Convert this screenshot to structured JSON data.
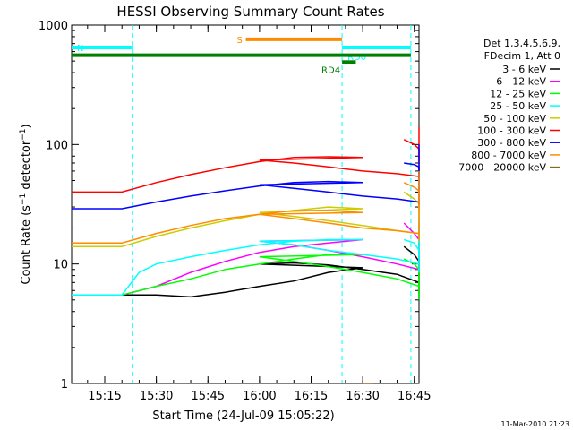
{
  "chart_data": {
    "type": "line",
    "title": "HESSI Observing Summary Count Rates",
    "xlabel": "Start Time (24-Jul-09 15:05:22)",
    "ylabel": "Count Rate (s⁻¹ detector⁻¹)",
    "ylabel_main": "Count Rate (s",
    "ylabel_sup1": "−1",
    "ylabel_mid": " detector",
    "ylabel_sup2": "−1",
    "ylabel_end": ")",
    "yscale": "log",
    "ylim": [
      1,
      1000
    ],
    "xlim_minutes": [
      0,
      101
    ],
    "x_ticks": [
      "15:15",
      "15:30",
      "15:45",
      "16:00",
      "16:15",
      "16:30",
      "16:45"
    ],
    "y_ticks": [
      "1",
      "10",
      "100",
      "1000"
    ],
    "legend_header": [
      "Det 1,3,4,5,6,9,",
      "FDecim 1, Att 0"
    ],
    "legend_position": "right",
    "footer_date": "11-Mar-2010 21:23",
    "segments": [
      {
        "label": "N",
        "color": "#00ffff",
        "x_start": "15:05",
        "x_end": "15:23",
        "level": 650
      },
      {
        "label": "S",
        "color": "#ff8c00",
        "x_start": "15:56",
        "x_end": "16:24",
        "level": 760
      },
      {
        "label": "RD0",
        "color": "#00ffff",
        "x_start": "16:24",
        "x_end": "16:44",
        "level": 650
      },
      {
        "label": "RD4",
        "color": "#008000",
        "x_start": "16:24",
        "x_end": "16:28",
        "level": 490
      },
      {
        "label": "",
        "color": "#008000",
        "x_start": "15:05",
        "x_end": "16:44",
        "level": 560
      }
    ],
    "night_boundaries": [
      "15:23",
      "16:24",
      "16:44"
    ],
    "series": [
      {
        "name": "3 - 6 keV",
        "color": "#000000",
        "segment1": [
          [
            15.2,
            5.5
          ],
          [
            15.3,
            5.5
          ],
          [
            15.4,
            5.3
          ],
          [
            15.5,
            5.8
          ],
          [
            15.6,
            6.5
          ],
          [
            15.7,
            7.2
          ],
          [
            15.8,
            8.5
          ],
          [
            15.9,
            9.3
          ],
          [
            16.0,
            10
          ],
          [
            16.1,
            10.2
          ],
          [
            16.2,
            9.8
          ],
          [
            16.3,
            9.0
          ],
          [
            16.4,
            8.2
          ],
          [
            16.5,
            7.0
          ],
          [
            16.6,
            6.2
          ],
          [
            16.7,
            5.5
          ],
          [
            16.8,
            5.0
          ],
          [
            16.9,
            5.5
          ],
          [
            16.95,
            12
          ]
        ],
        "segment2": [
          [
            16.42,
            14
          ],
          [
            16.45,
            12
          ],
          [
            16.5,
            10.5
          ],
          [
            16.55,
            9.5
          ],
          [
            16.6,
            9.0
          ],
          [
            16.65,
            8.5
          ],
          [
            16.7,
            8.2
          ],
          [
            16.73,
            7.5
          ]
        ]
      },
      {
        "name": "6 - 12 keV",
        "color": "#ff00ff",
        "segment1": [
          [
            15.0,
            5.5
          ],
          [
            15.2,
            5.5
          ],
          [
            15.3,
            6.5
          ],
          [
            15.4,
            8.5
          ],
          [
            15.5,
            10.5
          ],
          [
            15.6,
            12.5
          ],
          [
            15.7,
            14
          ],
          [
            15.8,
            15
          ],
          [
            15.9,
            16
          ],
          [
            16.0,
            15.5
          ],
          [
            16.1,
            14.5
          ],
          [
            16.2,
            13
          ],
          [
            16.3,
            11.5
          ],
          [
            16.4,
            10
          ],
          [
            16.5,
            9
          ],
          [
            16.6,
            8.5
          ],
          [
            16.7,
            8
          ],
          [
            16.8,
            7.5
          ],
          [
            16.9,
            8
          ],
          [
            16.95,
            22
          ]
        ],
        "segment2": [
          [
            16.42,
            22
          ],
          [
            16.45,
            18
          ],
          [
            16.5,
            16
          ],
          [
            16.55,
            15
          ],
          [
            16.6,
            14
          ],
          [
            16.65,
            13
          ],
          [
            16.7,
            12.5
          ],
          [
            16.73,
            12
          ]
        ]
      },
      {
        "name": "12 - 25 keV",
        "color": "#00ff00",
        "segment1": [
          [
            15.0,
            5.5
          ],
          [
            15.2,
            5.5
          ],
          [
            15.3,
            6.5
          ],
          [
            15.4,
            7.5
          ],
          [
            15.5,
            9
          ],
          [
            15.6,
            10
          ],
          [
            15.7,
            11
          ],
          [
            15.8,
            12
          ],
          [
            15.9,
            12
          ],
          [
            16.0,
            11.5
          ],
          [
            16.1,
            10.5
          ],
          [
            16.2,
            9.5
          ],
          [
            16.3,
            8.5
          ],
          [
            16.4,
            7.5
          ],
          [
            16.5,
            6.5
          ],
          [
            16.6,
            6
          ],
          [
            16.7,
            5.5
          ],
          [
            16.8,
            5
          ],
          [
            16.9,
            5.5
          ],
          [
            16.95,
            20
          ]
        ],
        "segment2": [
          [
            16.42,
            11
          ],
          [
            16.45,
            10
          ],
          [
            16.5,
            9
          ],
          [
            16.55,
            8
          ],
          [
            16.6,
            7.5
          ],
          [
            16.65,
            7
          ],
          [
            16.7,
            6.5
          ],
          [
            16.73,
            6.5
          ]
        ]
      },
      {
        "name": "25 - 50 keV",
        "color": "#00ffff",
        "segment1": [
          [
            15.0,
            5.5
          ],
          [
            15.1,
            5.5
          ],
          [
            15.2,
            5.5
          ],
          [
            15.25,
            8.5
          ],
          [
            15.3,
            10
          ],
          [
            15.4,
            11.5
          ],
          [
            15.5,
            13
          ],
          [
            15.6,
            14.5
          ],
          [
            15.7,
            15.5
          ],
          [
            15.8,
            16
          ],
          [
            15.9,
            16
          ],
          [
            16.0,
            15.5
          ],
          [
            16.1,
            14.5
          ],
          [
            16.2,
            13
          ],
          [
            16.3,
            12
          ],
          [
            16.4,
            11
          ],
          [
            16.5,
            10
          ],
          [
            16.6,
            9.5
          ],
          [
            16.7,
            9
          ],
          [
            16.8,
            8.5
          ],
          [
            16.9,
            9
          ],
          [
            16.95,
            25
          ]
        ],
        "segment2": [
          [
            16.42,
            16
          ],
          [
            16.45,
            15
          ],
          [
            16.5,
            13
          ],
          [
            16.55,
            12.5
          ],
          [
            16.6,
            12
          ],
          [
            16.65,
            11.5
          ],
          [
            16.7,
            11
          ],
          [
            16.73,
            11
          ]
        ]
      },
      {
        "name": "50 - 100 keV",
        "color": "#cccc00",
        "segment1": [
          [
            15.0,
            14
          ],
          [
            15.2,
            14
          ],
          [
            15.3,
            17
          ],
          [
            15.4,
            20
          ],
          [
            15.5,
            23
          ],
          [
            15.6,
            26
          ],
          [
            15.7,
            28
          ],
          [
            15.8,
            30
          ],
          [
            15.9,
            29
          ],
          [
            16.0,
            27
          ],
          [
            16.1,
            25
          ],
          [
            16.2,
            23
          ],
          [
            16.3,
            21
          ],
          [
            16.4,
            19
          ],
          [
            16.5,
            18
          ],
          [
            16.6,
            17
          ],
          [
            16.7,
            16
          ],
          [
            16.8,
            15.5
          ],
          [
            16.9,
            16
          ],
          [
            16.95,
            50
          ]
        ],
        "segment2": [
          [
            16.42,
            40
          ],
          [
            16.45,
            35
          ],
          [
            16.5,
            32
          ],
          [
            16.55,
            30
          ],
          [
            16.6,
            29
          ],
          [
            16.65,
            28
          ],
          [
            16.7,
            27
          ],
          [
            16.73,
            26
          ]
        ]
      },
      {
        "name": "100 - 300 keV",
        "color": "#ff0000",
        "segment1": [
          [
            15.0,
            40
          ],
          [
            15.2,
            40
          ],
          [
            15.3,
            48
          ],
          [
            15.4,
            56
          ],
          [
            15.5,
            64
          ],
          [
            15.6,
            72
          ],
          [
            15.7,
            78
          ],
          [
            15.8,
            79
          ],
          [
            15.9,
            78
          ],
          [
            16.0,
            74
          ],
          [
            16.1,
            70
          ],
          [
            16.2,
            65
          ],
          [
            16.3,
            60
          ],
          [
            16.4,
            57
          ],
          [
            16.5,
            54
          ],
          [
            16.6,
            52
          ],
          [
            16.7,
            50
          ],
          [
            16.8,
            50
          ],
          [
            16.9,
            55
          ],
          [
            16.95,
            140
          ]
        ],
        "segment2": [
          [
            16.42,
            110
          ],
          [
            16.45,
            100
          ],
          [
            16.5,
            92
          ],
          [
            16.55,
            88
          ],
          [
            16.6,
            85
          ],
          [
            16.65,
            80
          ],
          [
            16.7,
            76
          ],
          [
            16.73,
            73
          ]
        ]
      },
      {
        "name": "300 - 800 keV",
        "color": "#0000ff",
        "segment1": [
          [
            15.0,
            29
          ],
          [
            15.2,
            29
          ],
          [
            15.3,
            33
          ],
          [
            15.4,
            37
          ],
          [
            15.5,
            41
          ],
          [
            15.6,
            45
          ],
          [
            15.7,
            48
          ],
          [
            15.8,
            49
          ],
          [
            15.9,
            48
          ],
          [
            16.0,
            46
          ],
          [
            16.1,
            43
          ],
          [
            16.2,
            40
          ],
          [
            16.3,
            37
          ],
          [
            16.4,
            35
          ],
          [
            16.5,
            33
          ],
          [
            16.6,
            32
          ],
          [
            16.7,
            31
          ],
          [
            16.8,
            31
          ],
          [
            16.9,
            34
          ],
          [
            16.95,
            100
          ]
        ],
        "segment2": [
          [
            16.42,
            70
          ],
          [
            16.45,
            68
          ],
          [
            16.5,
            65
          ],
          [
            16.55,
            62
          ],
          [
            16.6,
            59
          ],
          [
            16.65,
            56
          ],
          [
            16.7,
            54
          ],
          [
            16.73,
            53
          ]
        ]
      },
      {
        "name": "800 - 7000 keV",
        "color": "#ff8c00",
        "segment1": [
          [
            15.0,
            15
          ],
          [
            15.2,
            15
          ],
          [
            15.3,
            18
          ],
          [
            15.4,
            21
          ],
          [
            15.5,
            24
          ],
          [
            15.6,
            26
          ],
          [
            15.7,
            28
          ],
          [
            15.8,
            28
          ],
          [
            15.9,
            27
          ],
          [
            16.0,
            26
          ],
          [
            16.1,
            24
          ],
          [
            16.2,
            22
          ],
          [
            16.3,
            20
          ],
          [
            16.4,
            19
          ],
          [
            16.5,
            18
          ],
          [
            16.6,
            17
          ],
          [
            16.7,
            16.5
          ],
          [
            16.8,
            16
          ],
          [
            16.9,
            17
          ],
          [
            16.95,
            60
          ]
        ],
        "segment2": [
          [
            16.42,
            48
          ],
          [
            16.45,
            44
          ],
          [
            16.5,
            41
          ],
          [
            16.55,
            38
          ],
          [
            16.6,
            36
          ],
          [
            16.65,
            34
          ],
          [
            16.7,
            32
          ],
          [
            16.73,
            30
          ]
        ]
      },
      {
        "name": "7000 - 20000 keV",
        "color": "#8b6914",
        "segment1": [
          [
            15.9,
            1
          ],
          [
            15.93,
            1
          ]
        ],
        "segment2": []
      }
    ]
  }
}
